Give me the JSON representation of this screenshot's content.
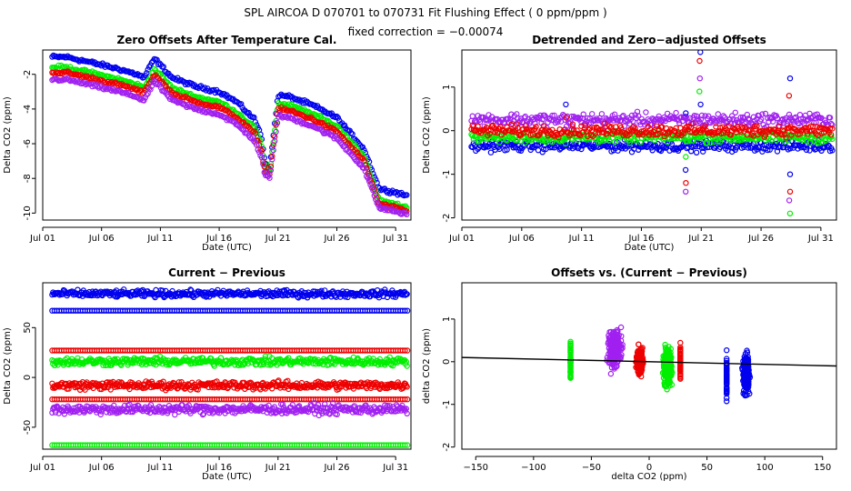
{
  "title": "SPL   AIRCOA D   070701 to 070731   Fit Flushing Effect ( 0 ppm/ppm )",
  "subtitle": "fixed correction = −0.00074",
  "colors": {
    "blue": "#0000ee",
    "green": "#00ee00",
    "red": "#ee0000",
    "purple": "#a020f0",
    "axis": "#000000"
  },
  "chart_data": [
    {
      "type": "scatter",
      "title": "Zero Offsets After Temperature Cal.",
      "xlabel": "Date (UTC)",
      "ylabel": "Delta CO2 (ppm)",
      "xlim": [
        1,
        32.3
      ],
      "ylim": [
        -10.4,
        -0.6
      ],
      "x_ticks": [
        {
          "v": 1,
          "label": "Jul 01"
        },
        {
          "v": 6,
          "label": "Jul 06"
        },
        {
          "v": 11,
          "label": "Jul 11"
        },
        {
          "v": 16,
          "label": "Jul 16"
        },
        {
          "v": 21,
          "label": "Jul 21"
        },
        {
          "v": 26,
          "label": "Jul 26"
        },
        {
          "v": 31,
          "label": "Jul 31"
        }
      ],
      "y_ticks": [
        {
          "v": -2,
          "label": "-2"
        },
        {
          "v": -4,
          "label": "-4"
        },
        {
          "v": -6,
          "label": "-6"
        },
        {
          "v": -8,
          "label": "-8"
        },
        {
          "v": -10,
          "label": "-10"
        }
      ],
      "series": [
        {
          "name": "blue",
          "color": "#0000ee",
          "x": [
            1.8,
            3,
            5,
            7.5,
            9,
            9.6,
            10.5,
            12,
            14,
            16,
            17.5,
            19,
            19.6,
            19.9,
            20.3,
            21,
            22,
            24,
            26,
            28.3,
            29.6,
            31,
            32
          ],
          "y": [
            -1.0,
            -1.0,
            -1.3,
            -1.7,
            -2.0,
            -2.2,
            -1.1,
            -2.2,
            -2.7,
            -3.0,
            -3.6,
            -4.6,
            -5.6,
            -7.1,
            -7.4,
            -3.2,
            -3.3,
            -3.8,
            -4.5,
            -6.3,
            -8.6,
            -8.8,
            -9.0
          ]
        },
        {
          "name": "green",
          "color": "#00ee00",
          "x": [
            1.8,
            3,
            5,
            7.5,
            9,
            9.6,
            10.5,
            12,
            14,
            16,
            17.5,
            19,
            19.6,
            19.9,
            20.3,
            21,
            22,
            24,
            26,
            28.3,
            29.6,
            31,
            32
          ],
          "y": [
            -1.6,
            -1.6,
            -1.9,
            -2.3,
            -2.6,
            -2.8,
            -1.7,
            -2.8,
            -3.3,
            -3.6,
            -4.2,
            -5.1,
            -6.1,
            -7.4,
            -7.6,
            -3.7,
            -3.8,
            -4.3,
            -5.0,
            -6.7,
            -9.3,
            -9.5,
            -9.7
          ]
        },
        {
          "name": "red",
          "color": "#ee0000",
          "x": [
            1.8,
            3,
            5,
            7.5,
            9,
            9.6,
            10.5,
            12,
            14,
            16,
            17.5,
            19,
            19.6,
            19.9,
            20.3,
            21,
            22,
            24,
            26,
            28.3,
            29.6,
            31,
            32
          ],
          "y": [
            -1.9,
            -1.9,
            -2.2,
            -2.6,
            -2.9,
            -3.1,
            -2.0,
            -3.1,
            -3.6,
            -3.9,
            -4.5,
            -5.4,
            -6.4,
            -7.6,
            -7.8,
            -4.0,
            -4.1,
            -4.6,
            -5.3,
            -7.0,
            -9.5,
            -9.7,
            -9.9
          ]
        },
        {
          "name": "purple",
          "color": "#a020f0",
          "x": [
            1.8,
            3,
            5,
            7.5,
            9,
            9.6,
            10.5,
            12,
            14,
            16,
            17.5,
            19,
            19.6,
            19.9,
            20.3,
            21,
            22,
            24,
            26,
            28.3,
            29.6,
            31,
            32
          ],
          "y": [
            -2.3,
            -2.3,
            -2.6,
            -3.0,
            -3.3,
            -3.5,
            -2.4,
            -3.5,
            -4.0,
            -4.3,
            -4.9,
            -5.8,
            -6.8,
            -7.8,
            -8.0,
            -4.4,
            -4.5,
            -5.0,
            -5.7,
            -7.4,
            -9.7,
            -9.9,
            -10.1
          ]
        }
      ]
    },
    {
      "type": "scatter",
      "title": "Detrended and Zero−adjusted Offsets",
      "xlabel": "Date (UTC)",
      "ylabel": "Delta CO2 (ppm)",
      "xlim": [
        1,
        32.3
      ],
      "ylim": [
        -2.05,
        1.85
      ],
      "x_ticks": [
        {
          "v": 1,
          "label": "Jul 01"
        },
        {
          "v": 6,
          "label": "Jul 06"
        },
        {
          "v": 11,
          "label": "Jul 11"
        },
        {
          "v": 16,
          "label": "Jul 16"
        },
        {
          "v": 21,
          "label": "Jul 21"
        },
        {
          "v": 26,
          "label": "Jul 26"
        },
        {
          "v": 31,
          "label": "Jul 31"
        }
      ],
      "y_ticks": [
        {
          "v": 1,
          "label": "1"
        },
        {
          "v": 0,
          "label": "0"
        },
        {
          "v": -1,
          "label": "-1"
        },
        {
          "v": -2,
          "label": "-2"
        }
      ],
      "series": [
        {
          "name": "blue",
          "color": "#0000ee",
          "level": -0.35,
          "spread": 0.12
        },
        {
          "name": "green",
          "color": "#00ee00",
          "level": -0.15,
          "spread": 0.12
        },
        {
          "name": "red",
          "color": "#ee0000",
          "level": 0.0,
          "spread": 0.13
        },
        {
          "name": "purple",
          "color": "#a020f0",
          "level": 0.25,
          "spread": 0.15
        }
      ],
      "excursions": [
        {
          "x": 9.7,
          "values": [
            0.6,
            0.3,
            0.1,
            -0.3
          ]
        },
        {
          "x": 19.7,
          "values": [
            -0.9,
            -1.2,
            -1.4,
            -0.6,
            0.4
          ]
        },
        {
          "x": 20.9,
          "values": [
            1.8,
            1.6,
            1.2,
            0.9,
            0.6
          ]
        },
        {
          "x": 28.4,
          "values": [
            -1.0,
            -1.4,
            -1.6,
            -1.9,
            1.2,
            0.8
          ]
        }
      ]
    },
    {
      "type": "scatter",
      "title": "Current − Previous",
      "xlabel": "Date (UTC)",
      "ylabel": "Delta CO2 (ppm)",
      "xlim": [
        1,
        32.3
      ],
      "ylim": [
        -72,
        95
      ],
      "x_ticks": [
        {
          "v": 1,
          "label": "Jul 01"
        },
        {
          "v": 6,
          "label": "Jul 06"
        },
        {
          "v": 11,
          "label": "Jul 11"
        },
        {
          "v": 16,
          "label": "Jul 16"
        },
        {
          "v": 21,
          "label": "Jul 21"
        },
        {
          "v": 26,
          "label": "Jul 26"
        },
        {
          "v": 31,
          "label": "Jul 31"
        }
      ],
      "y_ticks": [
        {
          "v": 50,
          "label": "50"
        },
        {
          "v": 0,
          "label": "0"
        },
        {
          "v": -50,
          "label": "-50"
        }
      ],
      "series": [
        {
          "name": "blue",
          "color": "#0000ee",
          "bands": [
            {
              "level": 84,
              "spread": 2.5
            },
            {
              "level": 67,
              "spread": 0
            }
          ]
        },
        {
          "name": "red",
          "color": "#ee0000",
          "bands": [
            {
              "level": 27,
              "spread": 0
            },
            {
              "level": -8,
              "spread": 3
            },
            {
              "level": -22,
              "spread": 0
            }
          ]
        },
        {
          "name": "green",
          "color": "#00ee00",
          "bands": [
            {
              "level": 16,
              "spread": 3
            },
            {
              "level": -68,
              "spread": 0
            }
          ]
        },
        {
          "name": "purple",
          "color": "#a020f0",
          "bands": [
            {
              "level": -32,
              "spread": 3.5
            }
          ]
        }
      ]
    },
    {
      "type": "scatter",
      "title": "Offsets vs. (Current − Previous)",
      "xlabel": "delta CO2 (ppm)",
      "ylabel": "delta CO2 (ppm)",
      "xlim": [
        -162,
        162
      ],
      "ylim": [
        -2.05,
        1.85
      ],
      "x_ticks": [
        {
          "v": -150,
          "label": "−150"
        },
        {
          "v": -100,
          "label": "−100"
        },
        {
          "v": -50,
          "label": "−50"
        },
        {
          "v": 0,
          "label": "0"
        },
        {
          "v": 50,
          "label": "50"
        },
        {
          "v": 100,
          "label": "100"
        },
        {
          "v": 150,
          "label": "150"
        }
      ],
      "y_ticks": [
        {
          "v": 1,
          "label": "1"
        },
        {
          "v": 0,
          "label": "0"
        },
        {
          "v": -1,
          "label": "-1"
        },
        {
          "v": -2,
          "label": "-2"
        }
      ],
      "fit_line": {
        "x": [
          -162,
          162
        ],
        "y": [
          0.1,
          -0.1
        ]
      },
      "clusters": [
        {
          "name": "green",
          "color": "#00ee00",
          "x": -68,
          "x_spread": 0,
          "y": 0.0,
          "y_spread": 0.5
        },
        {
          "name": "purple",
          "color": "#a020f0",
          "x": -30,
          "x_spread": 8,
          "y": 0.3,
          "y_spread": 0.45
        },
        {
          "name": "red",
          "color": "#ee0000",
          "x": -8,
          "x_spread": 4,
          "y": 0.0,
          "y_spread": 0.3
        },
        {
          "name": "red",
          "color": "#ee0000",
          "x": 27,
          "x_spread": 0,
          "y": 0.0,
          "y_spread": 0.4
        },
        {
          "name": "green",
          "color": "#00ee00",
          "x": 16,
          "x_spread": 5,
          "y": -0.1,
          "y_spread": 0.45
        },
        {
          "name": "blue",
          "color": "#0000ee",
          "x": 84,
          "x_spread": 4,
          "y": -0.3,
          "y_spread": 0.45
        },
        {
          "name": "blue",
          "color": "#0000ee",
          "x": 67,
          "x_spread": 0,
          "y": -0.3,
          "y_spread": 0.5
        }
      ]
    }
  ]
}
